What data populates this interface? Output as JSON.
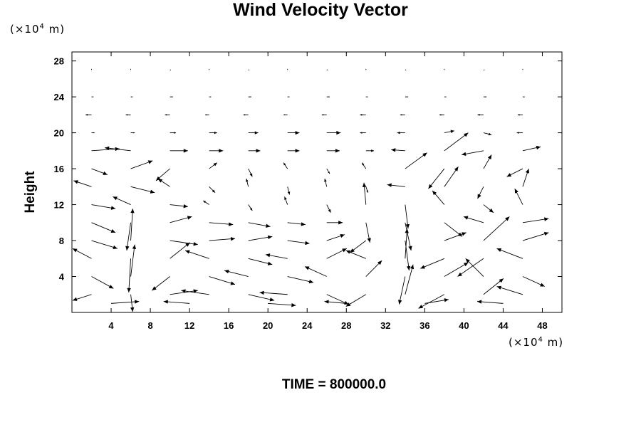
{
  "chart_data": {
    "type": "vector-field",
    "title": "Wind Velocity Vector",
    "ylabel": "Height",
    "y_unit_prefix": "(×10",
    "y_unit_exp": "4",
    "y_unit_suffix": " m)",
    "x_unit_prefix": "(×10",
    "x_unit_exp": "4",
    "x_unit_suffix": " m)",
    "xlim": [
      0,
      50
    ],
    "ylim": [
      0,
      29
    ],
    "x_ticks": [
      4,
      8,
      12,
      16,
      20,
      24,
      28,
      32,
      36,
      40,
      44,
      48
    ],
    "y_ticks": [
      4,
      8,
      12,
      16,
      20,
      24,
      28
    ],
    "x_tick_labels": [
      "4",
      "8",
      "12",
      "16",
      "20",
      "24",
      "28",
      "32",
      "36",
      "40",
      "44",
      "48"
    ],
    "y_tick_labels": [
      "4",
      "8",
      "12",
      "16",
      "20",
      "24",
      "28"
    ],
    "grid": false,
    "footer": "TIME = 800000.0",
    "vectors": [
      {
        "x": 2,
        "y": 27,
        "u": 0,
        "v": 0.1
      },
      {
        "x": 6,
        "y": 27,
        "u": 0,
        "v": 0.1
      },
      {
        "x": 10,
        "y": 27,
        "u": 0.1,
        "v": 0
      },
      {
        "x": 14,
        "y": 27,
        "u": 0,
        "v": 0.1
      },
      {
        "x": 18,
        "y": 27,
        "u": 0.1,
        "v": 0
      },
      {
        "x": 22,
        "y": 27,
        "u": 0,
        "v": 0.1
      },
      {
        "x": 26,
        "y": 27,
        "u": 0.1,
        "v": 0
      },
      {
        "x": 30,
        "y": 27,
        "u": 0,
        "v": 0.1
      },
      {
        "x": 34,
        "y": 27,
        "u": 0.1,
        "v": 0
      },
      {
        "x": 38,
        "y": 27,
        "u": 0,
        "v": 0.1
      },
      {
        "x": 42,
        "y": 27,
        "u": 0.1,
        "v": 0
      },
      {
        "x": 46,
        "y": 27,
        "u": 0,
        "v": 0.1
      },
      {
        "x": 2,
        "y": 24,
        "u": 0.2,
        "v": 0
      },
      {
        "x": 6,
        "y": 24,
        "u": 0.2,
        "v": 0
      },
      {
        "x": 10,
        "y": 24,
        "u": 0.3,
        "v": 0
      },
      {
        "x": 14,
        "y": 24,
        "u": 0.2,
        "v": 0
      },
      {
        "x": 18,
        "y": 24,
        "u": 0.3,
        "v": 0
      },
      {
        "x": 22,
        "y": 24,
        "u": 0.2,
        "v": 0
      },
      {
        "x": 26,
        "y": 24,
        "u": 0.3,
        "v": 0
      },
      {
        "x": 30,
        "y": 24,
        "u": 0.2,
        "v": 0
      },
      {
        "x": 34,
        "y": 24,
        "u": 0.3,
        "v": 0
      },
      {
        "x": 38,
        "y": 24,
        "u": 0.2,
        "v": 0
      },
      {
        "x": 42,
        "y": 24,
        "u": 0.3,
        "v": 0
      },
      {
        "x": 46,
        "y": 24,
        "u": 0.2,
        "v": 0
      },
      {
        "x": 2,
        "y": 22,
        "u": -0.6,
        "v": 0
      },
      {
        "x": 6,
        "y": 22,
        "u": -0.5,
        "v": 0
      },
      {
        "x": 10,
        "y": 22,
        "u": -0.5,
        "v": 0
      },
      {
        "x": 14,
        "y": 22,
        "u": -0.4,
        "v": 0
      },
      {
        "x": 18,
        "y": 22,
        "u": -0.5,
        "v": 0
      },
      {
        "x": 22,
        "y": 22,
        "u": -0.4,
        "v": 0
      },
      {
        "x": 26,
        "y": 22,
        "u": -0.5,
        "v": 0
      },
      {
        "x": 30,
        "y": 22,
        "u": -0.6,
        "v": 0
      },
      {
        "x": 34,
        "y": 22,
        "u": -0.5,
        "v": 0
      },
      {
        "x": 38,
        "y": 22,
        "u": -0.5,
        "v": 0
      },
      {
        "x": 42,
        "y": 22,
        "u": -0.6,
        "v": 0
      },
      {
        "x": 46,
        "y": 22,
        "u": -0.5,
        "v": 0
      },
      {
        "x": 2,
        "y": 20,
        "u": 0.3,
        "v": 0
      },
      {
        "x": 6,
        "y": 20,
        "u": 0.4,
        "v": 0
      },
      {
        "x": 10,
        "y": 20,
        "u": 0.6,
        "v": 0
      },
      {
        "x": 14,
        "y": 20,
        "u": 0.8,
        "v": 0
      },
      {
        "x": 18,
        "y": 20,
        "u": 1,
        "v": 0
      },
      {
        "x": 22,
        "y": 20,
        "u": 1.2,
        "v": 0
      },
      {
        "x": 26,
        "y": 20,
        "u": 1.4,
        "v": 0
      },
      {
        "x": 30,
        "y": 20,
        "u": -0.6,
        "v": 0
      },
      {
        "x": 34,
        "y": 20,
        "u": -0.8,
        "v": 0
      },
      {
        "x": 38,
        "y": 20,
        "u": 1,
        "v": 0.2
      },
      {
        "x": 42,
        "y": 20,
        "u": 0.8,
        "v": -0.2
      },
      {
        "x": 46,
        "y": 20,
        "u": -0.6,
        "v": 0
      },
      {
        "x": 2,
        "y": 18,
        "u": 2.8,
        "v": 0.2
      },
      {
        "x": 6,
        "y": 18,
        "u": -2.6,
        "v": 0.3
      },
      {
        "x": 10,
        "y": 18,
        "u": 1.8,
        "v": 0
      },
      {
        "x": 14,
        "y": 18,
        "u": 1.4,
        "v": 0
      },
      {
        "x": 18,
        "y": 18,
        "u": 1.2,
        "v": 0
      },
      {
        "x": 22,
        "y": 18,
        "u": 1.2,
        "v": 0
      },
      {
        "x": 26,
        "y": 18,
        "u": 1.3,
        "v": 0
      },
      {
        "x": 30,
        "y": 18,
        "u": 0.8,
        "v": 0
      },
      {
        "x": 34,
        "y": 18,
        "u": -1.4,
        "v": 0.1
      },
      {
        "x": 38,
        "y": 18,
        "u": 2.4,
        "v": 1.8
      },
      {
        "x": 42,
        "y": 18,
        "u": -2.2,
        "v": -0.4
      },
      {
        "x": 46,
        "y": 18,
        "u": 1.8,
        "v": 0.4
      },
      {
        "x": 2,
        "y": 16,
        "u": 1.6,
        "v": -0.6
      },
      {
        "x": 6,
        "y": 16,
        "u": 2.2,
        "v": 0.8
      },
      {
        "x": 10,
        "y": 16,
        "u": -1.4,
        "v": -1.2
      },
      {
        "x": 14,
        "y": 16,
        "u": 0.8,
        "v": 0.6
      },
      {
        "x": 18,
        "y": 16,
        "u": 0.4,
        "v": -0.8
      },
      {
        "x": 22,
        "y": 16,
        "u": -0.4,
        "v": 0.6
      },
      {
        "x": 26,
        "y": 16,
        "u": 0.3,
        "v": -0.5
      },
      {
        "x": 30,
        "y": 16,
        "u": -0.4,
        "v": 0.6
      },
      {
        "x": 34,
        "y": 16,
        "u": 2.2,
        "v": 1.6
      },
      {
        "x": 38,
        "y": 16,
        "u": -1.6,
        "v": -2
      },
      {
        "x": 42,
        "y": 16,
        "u": 0.8,
        "v": 1.4
      },
      {
        "x": 46,
        "y": 16,
        "u": -1.6,
        "v": -0.8
      },
      {
        "x": 2,
        "y": 14,
        "u": -1.8,
        "v": 0.6
      },
      {
        "x": 6,
        "y": 14,
        "u": 2.4,
        "v": -0.6
      },
      {
        "x": 10,
        "y": 14,
        "u": -1.2,
        "v": 0.8
      },
      {
        "x": 14,
        "y": 14,
        "u": 0.6,
        "v": -0.6
      },
      {
        "x": 18,
        "y": 14,
        "u": -0.2,
        "v": 0.8
      },
      {
        "x": 22,
        "y": 14,
        "u": 0.2,
        "v": -0.8
      },
      {
        "x": 26,
        "y": 14,
        "u": -0.2,
        "v": 0.8
      },
      {
        "x": 30,
        "y": 14,
        "u": 0.2,
        "v": -0.6
      },
      {
        "x": 34,
        "y": 14,
        "u": -1.8,
        "v": 0.2
      },
      {
        "x": 38,
        "y": 14,
        "u": 1.4,
        "v": 2
      },
      {
        "x": 42,
        "y": 14,
        "u": -0.6,
        "v": -1.2
      },
      {
        "x": 46,
        "y": 14,
        "u": 0.6,
        "v": 1.8
      },
      {
        "x": 2,
        "y": 12,
        "u": 2.4,
        "v": -0.4
      },
      {
        "x": 6,
        "y": 12,
        "u": -1.8,
        "v": 0.8
      },
      {
        "x": 10,
        "y": 12,
        "u": 1.8,
        "v": -0.2
      },
      {
        "x": 14,
        "y": 12,
        "u": -0.6,
        "v": 0.4
      },
      {
        "x": 18,
        "y": 12,
        "u": 0.4,
        "v": -0.6
      },
      {
        "x": 22,
        "y": 12,
        "u": -0.3,
        "v": 0.8
      },
      {
        "x": 26,
        "y": 12,
        "u": 0.4,
        "v": -0.8
      },
      {
        "x": 30,
        "y": 12,
        "u": -0.2,
        "v": 2.2
      },
      {
        "x": 34,
        "y": 12,
        "u": 0.3,
        "v": -2.4
      },
      {
        "x": 38,
        "y": 12,
        "u": -1.2,
        "v": 1.4
      },
      {
        "x": 42,
        "y": 12,
        "u": 1,
        "v": -0.8
      },
      {
        "x": 46,
        "y": 12,
        "u": -0.8,
        "v": 1.6
      },
      {
        "x": 2,
        "y": 10,
        "u": 2.4,
        "v": -1
      },
      {
        "x": 6,
        "y": 10,
        "u": -0.4,
        "v": -2.8
      },
      {
        "x": 10,
        "y": 10,
        "u": 2.2,
        "v": 0.6
      },
      {
        "x": 14,
        "y": 10,
        "u": 2.4,
        "v": -0.2
      },
      {
        "x": 18,
        "y": 10,
        "u": 2.2,
        "v": -0.4
      },
      {
        "x": 22,
        "y": 10,
        "u": 1.8,
        "v": -0.2
      },
      {
        "x": 26,
        "y": 10,
        "u": 1.6,
        "v": 0
      },
      {
        "x": 30,
        "y": 10,
        "u": 0.4,
        "v": -2
      },
      {
        "x": 34,
        "y": 10,
        "u": 0.6,
        "v": -2.8
      },
      {
        "x": 38,
        "y": 10,
        "u": 1.8,
        "v": -1.4
      },
      {
        "x": 42,
        "y": 10,
        "u": -2,
        "v": 0.6
      },
      {
        "x": 46,
        "y": 10,
        "u": 2.6,
        "v": 0.4
      },
      {
        "x": 2,
        "y": 8,
        "u": 2.6,
        "v": -0.8
      },
      {
        "x": 6,
        "y": 8,
        "u": 0.2,
        "v": 3.2
      },
      {
        "x": 10,
        "y": 8,
        "u": 2.8,
        "v": -0.4
      },
      {
        "x": 14,
        "y": 8,
        "u": 2.6,
        "v": 0.2
      },
      {
        "x": 18,
        "y": 8,
        "u": 2.4,
        "v": 0.4
      },
      {
        "x": 22,
        "y": 8,
        "u": 2.2,
        "v": -0.3
      },
      {
        "x": 26,
        "y": 8,
        "u": 1.8,
        "v": 0.6
      },
      {
        "x": 30,
        "y": 8,
        "u": -1.6,
        "v": -1.2
      },
      {
        "x": 34,
        "y": 8,
        "u": 0.4,
        "v": -3
      },
      {
        "x": 38,
        "y": 8,
        "u": 2.2,
        "v": 0.8
      },
      {
        "x": 42,
        "y": 8,
        "u": 2.6,
        "v": 2.4
      },
      {
        "x": 46,
        "y": 8,
        "u": 2.6,
        "v": 0.8
      },
      {
        "x": 2,
        "y": 6,
        "u": -2.2,
        "v": 1
      },
      {
        "x": 6,
        "y": 6,
        "u": -0.2,
        "v": -3.4
      },
      {
        "x": 10,
        "y": 6,
        "u": 2,
        "v": 1.6
      },
      {
        "x": 14,
        "y": 6,
        "u": -2.4,
        "v": 0.8
      },
      {
        "x": 18,
        "y": 6,
        "u": 2.4,
        "v": -0.6
      },
      {
        "x": 22,
        "y": 6,
        "u": -2.2,
        "v": 0.4
      },
      {
        "x": 26,
        "y": 6,
        "u": 2,
        "v": 1
      },
      {
        "x": 30,
        "y": 6,
        "u": -2,
        "v": 0.8
      },
      {
        "x": 34,
        "y": 6,
        "u": 0.2,
        "v": 3
      },
      {
        "x": 38,
        "y": 6,
        "u": -2.4,
        "v": -1
      },
      {
        "x": 42,
        "y": 6,
        "u": -2.6,
        "v": -1.8
      },
      {
        "x": 46,
        "y": 6,
        "u": -2.6,
        "v": 1
      },
      {
        "x": 2,
        "y": 4,
        "u": 2.2,
        "v": -1.2
      },
      {
        "x": 6,
        "y": 4,
        "u": 0.4,
        "v": 3.2
      },
      {
        "x": 10,
        "y": 4,
        "u": -1.8,
        "v": -1.4
      },
      {
        "x": 14,
        "y": 4,
        "u": 2.6,
        "v": -0.8
      },
      {
        "x": 18,
        "y": 4,
        "u": -2.4,
        "v": 0.6
      },
      {
        "x": 22,
        "y": 4,
        "u": 2.6,
        "v": -0.6
      },
      {
        "x": 26,
        "y": 4,
        "u": -2.2,
        "v": 1
      },
      {
        "x": 30,
        "y": 4,
        "u": 1.6,
        "v": 1.6
      },
      {
        "x": 34,
        "y": 4,
        "u": -0.6,
        "v": -2.8
      },
      {
        "x": 38,
        "y": 4,
        "u": 2.4,
        "v": 1.4
      },
      {
        "x": 42,
        "y": 4,
        "u": -1.8,
        "v": 1.8
      },
      {
        "x": 46,
        "y": 4,
        "u": 2.2,
        "v": -1
      },
      {
        "x": 2,
        "y": 2,
        "u": -2.6,
        "v": -0.6
      },
      {
        "x": 6,
        "y": 2,
        "u": 0.2,
        "v": -3
      },
      {
        "x": 10,
        "y": 2,
        "u": 2.8,
        "v": 0.4
      },
      {
        "x": 14,
        "y": 2,
        "u": -2.8,
        "v": 0.4
      },
      {
        "x": 18,
        "y": 2,
        "u": 2.6,
        "v": -0.6
      },
      {
        "x": 22,
        "y": 2,
        "u": -2.8,
        "v": 0.2
      },
      {
        "x": 26,
        "y": 2,
        "u": 2.2,
        "v": -1
      },
      {
        "x": 30,
        "y": 2,
        "u": -2,
        "v": -1.2
      },
      {
        "x": 34,
        "y": 2,
        "u": 0.8,
        "v": 3
      },
      {
        "x": 38,
        "y": 2,
        "u": -2.6,
        "v": -1.4
      },
      {
        "x": 42,
        "y": 2,
        "u": 2,
        "v": 1.6
      },
      {
        "x": 46,
        "y": 2,
        "u": -2.6,
        "v": 0.8
      },
      {
        "x": 4,
        "y": 1,
        "u": 2.8,
        "v": 0.2
      },
      {
        "x": 12,
        "y": 1,
        "u": -2.6,
        "v": 0.2
      },
      {
        "x": 20,
        "y": 1,
        "u": 2.8,
        "v": -0.2
      },
      {
        "x": 28,
        "y": 1,
        "u": -2.2,
        "v": 0.2
      },
      {
        "x": 36,
        "y": 1,
        "u": 2.4,
        "v": 0.4
      },
      {
        "x": 44,
        "y": 1,
        "u": -2.6,
        "v": 0.2
      }
    ]
  }
}
